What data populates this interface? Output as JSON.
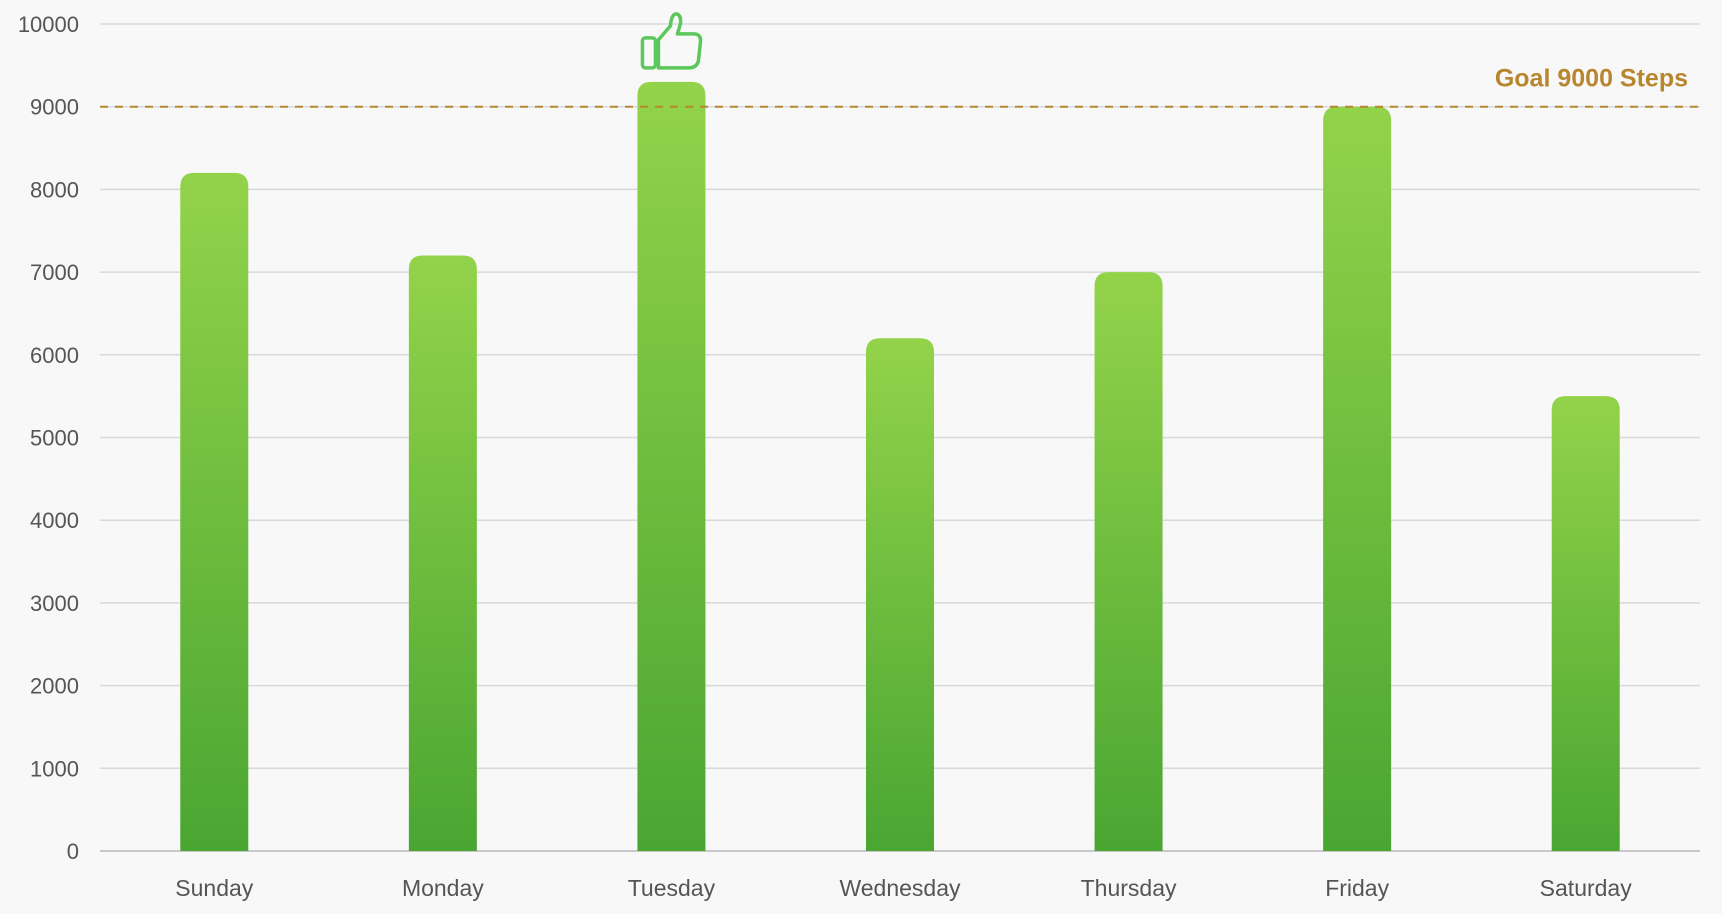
{
  "chart_data": {
    "type": "bar",
    "categories": [
      "Sunday",
      "Monday",
      "Tuesday",
      "Wednesday",
      "Thursday",
      "Friday",
      "Saturday"
    ],
    "values": [
      8200,
      7200,
      9300,
      6200,
      7000,
      9000,
      5500
    ],
    "ylim": [
      0,
      10000
    ],
    "yticks": [
      0,
      1000,
      2000,
      3000,
      4000,
      5000,
      6000,
      7000,
      8000,
      9000,
      10000
    ],
    "grid": true,
    "goal": {
      "value": 9000,
      "label": "Goal 9000 Steps",
      "color": "#b8862e"
    },
    "highlight": {
      "category": "Tuesday",
      "icon": "thumbs-up-icon",
      "color": "#5cc85c"
    },
    "colors": {
      "bar_top": "#93d34a",
      "bar_bottom": "#4aa632",
      "grid": "#d9d9d9",
      "text": "#555555"
    }
  }
}
